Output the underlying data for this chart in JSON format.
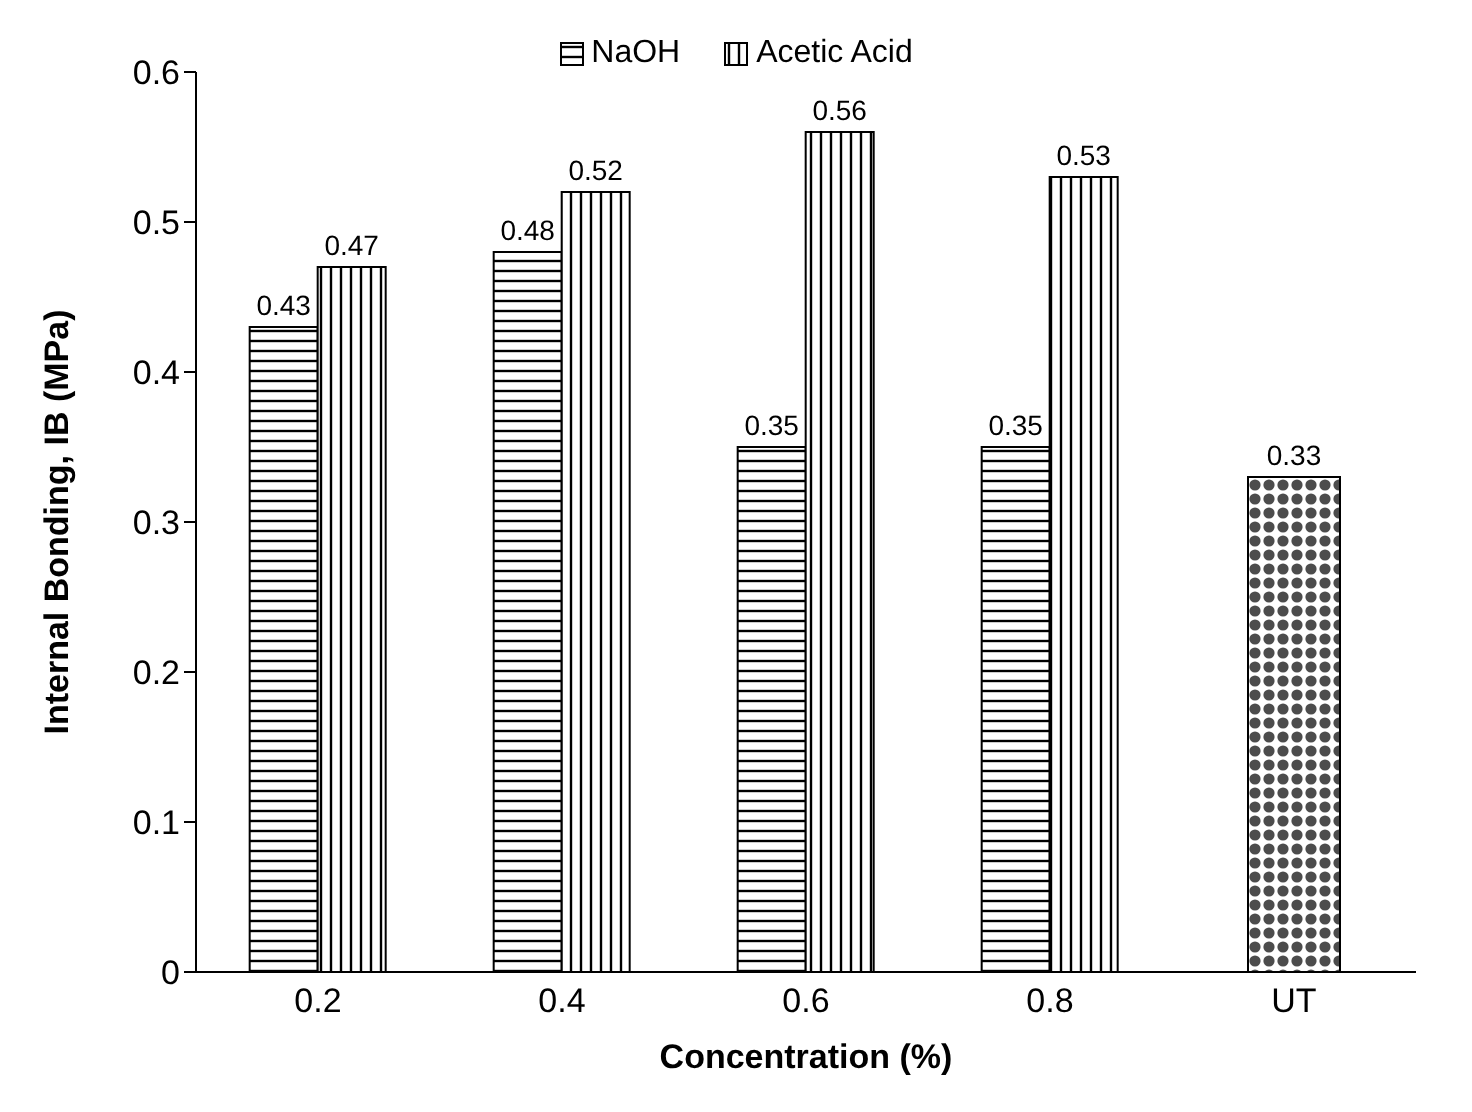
{
  "chart_data": {
    "type": "bar",
    "xlabel": "Concentration (%)",
    "ylabel": "Internal Bonding, IB (MPa)",
    "categories": [
      "0.2",
      "0.4",
      "0.6",
      "0.8",
      "UT"
    ],
    "series": [
      {
        "name": "NaOH",
        "color": "#000000",
        "values": [
          0.43,
          0.48,
          0.35,
          0.35,
          null
        ]
      },
      {
        "name": "Acetic Acid",
        "color": "#000000",
        "values": [
          0.47,
          0.52,
          0.56,
          0.53,
          null
        ]
      },
      {
        "color": "#000000",
        "values": [
          null,
          null,
          null,
          null,
          0.33
        ]
      }
    ],
    "ylim": [
      0,
      0.6
    ],
    "yticks": [
      0,
      0.1,
      0.2,
      0.3,
      0.4,
      0.5,
      0.6
    ],
    "grid": false,
    "legend": "top",
    "data_labels": true
  }
}
